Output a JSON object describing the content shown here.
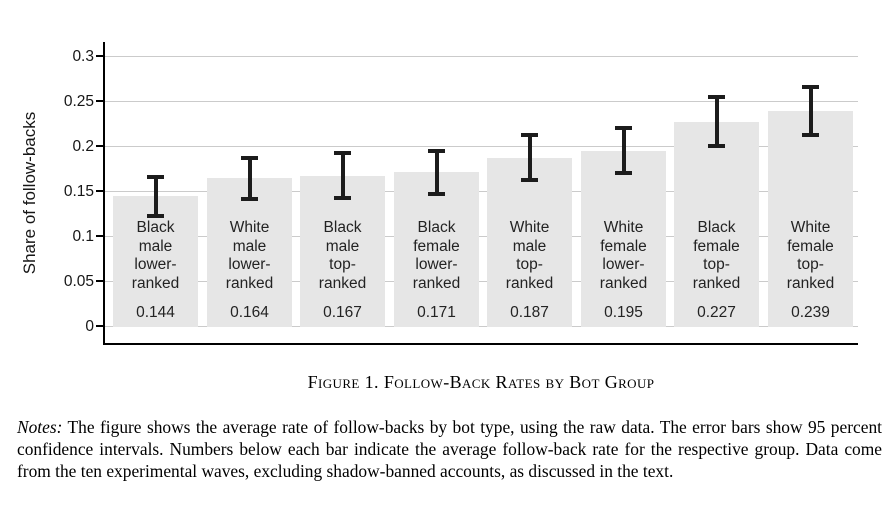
{
  "figure": {
    "caption": "Figure 1. Follow-Back Rates by Bot Group",
    "notes_label": "Notes:",
    "notes_text": "The figure shows the average rate of follow-backs by bot type, using the raw data. The error bars show 95 percent confidence intervals. Numbers below each bar indicate the average follow-back rate for the respective group. Data come from the ten experimental waves, excluding shadow-banned accounts, as discussed in the text."
  },
  "chart_data": {
    "type": "bar",
    "title": "",
    "xlabel": "",
    "ylabel": "Share of follow-backs",
    "ylim": [
      0,
      0.3
    ],
    "ytick_values": [
      0,
      0.05,
      0.1,
      0.15,
      0.2,
      0.25,
      0.3
    ],
    "ytick_labels": [
      "0",
      "0.05",
      "0.1",
      "0.15",
      "0.2",
      "0.25",
      "0.3"
    ],
    "grid": "horizontal",
    "legend": "none",
    "error_bars": "95 percent confidence intervals",
    "categories": [
      "Black male lower-ranked",
      "White male lower-ranked",
      "Black male top-ranked",
      "Black female lower-ranked",
      "White male top-ranked",
      "White female lower-ranked",
      "Black female top-ranked",
      "White female top-ranked"
    ],
    "bars": [
      {
        "label_lines": [
          "Black",
          "male",
          "lower-",
          "ranked"
        ],
        "value": 0.144,
        "value_label": "0.144",
        "ci_low": 0.122,
        "ci_high": 0.166
      },
      {
        "label_lines": [
          "White",
          "male",
          "lower-",
          "ranked"
        ],
        "value": 0.164,
        "value_label": "0.164",
        "ci_low": 0.141,
        "ci_high": 0.187
      },
      {
        "label_lines": [
          "Black",
          "male",
          "top-",
          "ranked"
        ],
        "value": 0.167,
        "value_label": "0.167",
        "ci_low": 0.142,
        "ci_high": 0.192
      },
      {
        "label_lines": [
          "Black",
          "female",
          "lower-",
          "ranked"
        ],
        "value": 0.171,
        "value_label": "0.171",
        "ci_low": 0.147,
        "ci_high": 0.195
      },
      {
        "label_lines": [
          "White",
          "male",
          "top-",
          "ranked"
        ],
        "value": 0.187,
        "value_label": "0.187",
        "ci_low": 0.162,
        "ci_high": 0.212
      },
      {
        "label_lines": [
          "White",
          "female",
          "lower-",
          "ranked"
        ],
        "value": 0.195,
        "value_label": "0.195",
        "ci_low": 0.17,
        "ci_high": 0.22
      },
      {
        "label_lines": [
          "Black",
          "female",
          "top-",
          "ranked"
        ],
        "value": 0.227,
        "value_label": "0.227",
        "ci_low": 0.2,
        "ci_high": 0.254
      },
      {
        "label_lines": [
          "White",
          "female",
          "top-",
          "ranked"
        ],
        "value": 0.239,
        "value_label": "0.239",
        "ci_low": 0.212,
        "ci_high": 0.266
      }
    ],
    "colors": {
      "bar_fill": "#e6e6e6",
      "grid_line": "#cbcbcb",
      "axis_line": "#000000",
      "error_bar": "#1c1c1c",
      "label_text": "#232323"
    }
  }
}
